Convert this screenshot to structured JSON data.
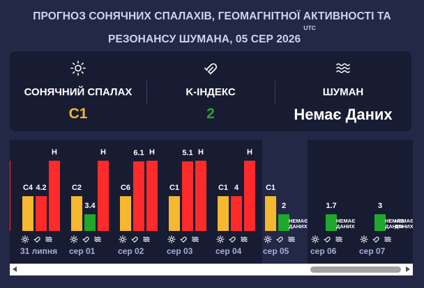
{
  "title": {
    "line1": "ПРОГНОЗ СОНЯЧНИХ СПАЛАХІВ, ГЕОМАГНІТНОЇ АКТИВНОСТІ ТА",
    "line2": "РЕЗОНАНСУ ШУМАНА, 05 СЕР 2026",
    "utc": "UTC"
  },
  "summary": {
    "solar_flare": {
      "label": "СОНЯЧНИЙ СПАЛАХ",
      "value": "C1",
      "color": "#f5b82e",
      "icon": "sun-icon"
    },
    "k_index": {
      "label": "K-ІНДЕКС",
      "value": "2",
      "color": "#1fa82b",
      "icon": "magnet-icon"
    },
    "schumann": {
      "label": "ШУМАН",
      "value": "Немає Даних",
      "color": "#ffffff",
      "icon": "waves-icon"
    }
  },
  "colors": {
    "flare": "#f5b82e",
    "k_high": "#ff2a2a",
    "k_low": "#1fa82b"
  },
  "chart_data": {
    "type": "bar",
    "categories": [
      "31 липня",
      "сер 01",
      "сер 02",
      "сер 03",
      "сер 04",
      "сер 05",
      "сер 06",
      "сер 07"
    ],
    "series": [
      {
        "labels": [
          "C4",
          "C2",
          "C6",
          "C1",
          "C1",
          "C1",
          "",
          ""
        ]
      },
      {
        "labels": [
          "4.2",
          "3.4",
          "6.1",
          "5.1",
          "4",
          "2",
          "1.7",
          "3"
        ]
      },
      {
        "labels": [
          "H",
          "H",
          "H",
          "H",
          "H",
          "НЕМАЄ ДАНИХ",
          "НЕМАЄ ДАНИХ",
          "НЕМАЄ ДАНИХ"
        ]
      }
    ],
    "extra_labels": {
      "partial_left": "H",
      "sep07_extra": "НЕМАЄ ДАНИХ"
    }
  },
  "scrollbar": {
    "state": "scrolled-right"
  }
}
